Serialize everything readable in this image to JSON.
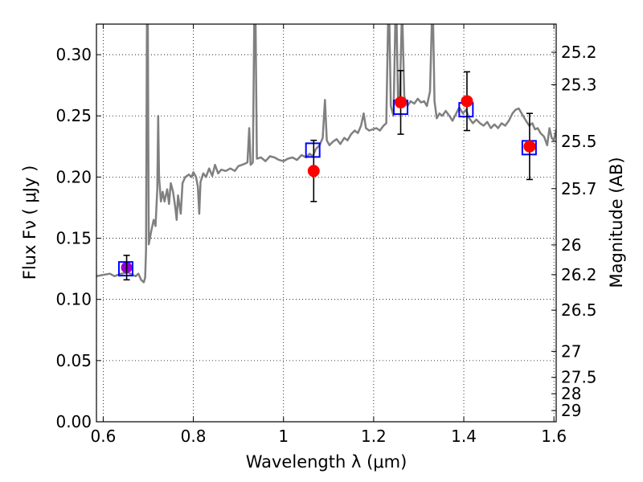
{
  "chart_data": {
    "type": "scatter",
    "xlabel": "Wavelength  λ (μm)",
    "ylabel": "Flux  Fν  ( μJy )",
    "y2label": "Magnitude (AB)",
    "xlim": [
      0.585,
      1.605
    ],
    "ylim": [
      0.0,
      0.325
    ],
    "grid": true,
    "x_ticks": [
      0.6,
      0.8,
      1.0,
      1.2,
      1.4,
      1.6
    ],
    "x_tick_labels": [
      "0.6",
      "0.8",
      "1",
      "1.2",
      "1.4",
      "1.6"
    ],
    "y_ticks": [
      0.0,
      0.05,
      0.1,
      0.15,
      0.2,
      0.25,
      0.3
    ],
    "y_tick_labels": [
      "0.00",
      "0.05",
      "0.10",
      "0.15",
      "0.20",
      "0.25",
      "0.30"
    ],
    "y2_ticks": [
      {
        "label": "25.2",
        "mag": 25.2
      },
      {
        "label": "25.3",
        "mag": 25.3
      },
      {
        "label": "25.5",
        "mag": 25.5
      },
      {
        "label": "25.7",
        "mag": 25.7
      },
      {
        "label": "26",
        "mag": 26.0
      },
      {
        "label": "26.2",
        "mag": 26.2
      },
      {
        "label": "26.5",
        "mag": 26.5
      },
      {
        "label": "27",
        "mag": 27.0
      },
      {
        "label": "27.5",
        "mag": 27.5
      },
      {
        "label": "28",
        "mag": 28.0
      },
      {
        "label": "29",
        "mag": 29.0
      }
    ],
    "series": [
      {
        "kind": "line",
        "color": "#808080",
        "points": [
          [
            0.585,
            0.119
          ],
          [
            0.6,
            0.12
          ],
          [
            0.615,
            0.121
          ],
          [
            0.625,
            0.119
          ],
          [
            0.64,
            0.121
          ],
          [
            0.655,
            0.122
          ],
          [
            0.665,
            0.12
          ],
          [
            0.672,
            0.119
          ],
          [
            0.678,
            0.121
          ],
          [
            0.684,
            0.116
          ],
          [
            0.69,
            0.114
          ],
          [
            0.693,
            0.118
          ],
          [
            0.695,
            0.14
          ],
          [
            0.697,
            0.325
          ],
          [
            0.699,
            0.325
          ],
          [
            0.701,
            0.145
          ],
          [
            0.706,
            0.155
          ],
          [
            0.712,
            0.165
          ],
          [
            0.716,
            0.16
          ],
          [
            0.72,
            0.19
          ],
          [
            0.722,
            0.25
          ],
          [
            0.724,
            0.2
          ],
          [
            0.728,
            0.18
          ],
          [
            0.732,
            0.188
          ],
          [
            0.736,
            0.18
          ],
          [
            0.742,
            0.19
          ],
          [
            0.746,
            0.178
          ],
          [
            0.75,
            0.195
          ],
          [
            0.755,
            0.188
          ],
          [
            0.76,
            0.175
          ],
          [
            0.763,
            0.165
          ],
          [
            0.766,
            0.185
          ],
          [
            0.772,
            0.17
          ],
          [
            0.776,
            0.195
          ],
          [
            0.782,
            0.2
          ],
          [
            0.79,
            0.202
          ],
          [
            0.796,
            0.2
          ],
          [
            0.8,
            0.204
          ],
          [
            0.806,
            0.2
          ],
          [
            0.81,
            0.192
          ],
          [
            0.813,
            0.17
          ],
          [
            0.816,
            0.196
          ],
          [
            0.822,
            0.203
          ],
          [
            0.828,
            0.2
          ],
          [
            0.835,
            0.207
          ],
          [
            0.842,
            0.201
          ],
          [
            0.848,
            0.21
          ],
          [
            0.855,
            0.203
          ],
          [
            0.862,
            0.206
          ],
          [
            0.872,
            0.205
          ],
          [
            0.882,
            0.207
          ],
          [
            0.892,
            0.205
          ],
          [
            0.9,
            0.209
          ],
          [
            0.908,
            0.21
          ],
          [
            0.915,
            0.211
          ],
          [
            0.92,
            0.212
          ],
          [
            0.924,
            0.24
          ],
          [
            0.927,
            0.21
          ],
          [
            0.932,
            0.212
          ],
          [
            0.935,
            0.325
          ],
          [
            0.938,
            0.325
          ],
          [
            0.941,
            0.215
          ],
          [
            0.95,
            0.216
          ],
          [
            0.96,
            0.213
          ],
          [
            0.97,
            0.217
          ],
          [
            0.98,
            0.216
          ],
          [
            0.99,
            0.214
          ],
          [
            1.0,
            0.213
          ],
          [
            1.01,
            0.215
          ],
          [
            1.02,
            0.216
          ],
          [
            1.03,
            0.214
          ],
          [
            1.04,
            0.218
          ],
          [
            1.05,
            0.216
          ],
          [
            1.058,
            0.219
          ],
          [
            1.065,
            0.217
          ],
          [
            1.072,
            0.223
          ],
          [
            1.08,
            0.226
          ],
          [
            1.087,
            0.232
          ],
          [
            1.092,
            0.263
          ],
          [
            1.096,
            0.23
          ],
          [
            1.102,
            0.226
          ],
          [
            1.11,
            0.229
          ],
          [
            1.118,
            0.231
          ],
          [
            1.126,
            0.227
          ],
          [
            1.135,
            0.232
          ],
          [
            1.142,
            0.23
          ],
          [
            1.15,
            0.235
          ],
          [
            1.158,
            0.238
          ],
          [
            1.165,
            0.236
          ],
          [
            1.172,
            0.242
          ],
          [
            1.178,
            0.252
          ],
          [
            1.183,
            0.24
          ],
          [
            1.19,
            0.238
          ],
          [
            1.198,
            0.239
          ],
          [
            1.206,
            0.24
          ],
          [
            1.214,
            0.238
          ],
          [
            1.222,
            0.242
          ],
          [
            1.228,
            0.244
          ],
          [
            1.232,
            0.325
          ],
          [
            1.235,
            0.325
          ],
          [
            1.238,
            0.258
          ],
          [
            1.244,
            0.25
          ],
          [
            1.248,
            0.325
          ],
          [
            1.251,
            0.325
          ],
          [
            1.254,
            0.262
          ],
          [
            1.258,
            0.266
          ],
          [
            1.262,
            0.325
          ],
          [
            1.264,
            0.325
          ],
          [
            1.268,
            0.266
          ],
          [
            1.275,
            0.258
          ],
          [
            1.282,
            0.262
          ],
          [
            1.29,
            0.26
          ],
          [
            1.298,
            0.264
          ],
          [
            1.305,
            0.261
          ],
          [
            1.312,
            0.262
          ],
          [
            1.318,
            0.258
          ],
          [
            1.325,
            0.27
          ],
          [
            1.329,
            0.325
          ],
          [
            1.332,
            0.325
          ],
          [
            1.335,
            0.262
          ],
          [
            1.34,
            0.248
          ],
          [
            1.346,
            0.252
          ],
          [
            1.352,
            0.25
          ],
          [
            1.36,
            0.254
          ],
          [
            1.368,
            0.25
          ],
          [
            1.375,
            0.246
          ],
          [
            1.382,
            0.251
          ],
          [
            1.39,
            0.257
          ],
          [
            1.398,
            0.252
          ],
          [
            1.405,
            0.255
          ],
          [
            1.412,
            0.248
          ],
          [
            1.42,
            0.244
          ],
          [
            1.428,
            0.247
          ],
          [
            1.436,
            0.244
          ],
          [
            1.444,
            0.242
          ],
          [
            1.452,
            0.245
          ],
          [
            1.46,
            0.24
          ],
          [
            1.468,
            0.243
          ],
          [
            1.476,
            0.24
          ],
          [
            1.484,
            0.244
          ],
          [
            1.492,
            0.242
          ],
          [
            1.5,
            0.246
          ],
          [
            1.508,
            0.252
          ],
          [
            1.515,
            0.255
          ],
          [
            1.522,
            0.256
          ],
          [
            1.53,
            0.251
          ],
          [
            1.538,
            0.246
          ],
          [
            1.545,
            0.242
          ],
          [
            1.552,
            0.244
          ],
          [
            1.558,
            0.239
          ],
          [
            1.564,
            0.24
          ],
          [
            1.57,
            0.236
          ],
          [
            1.578,
            0.233
          ],
          [
            1.585,
            0.226
          ],
          [
            1.59,
            0.24
          ],
          [
            1.595,
            0.232
          ],
          [
            1.6,
            0.23
          ],
          [
            1.605,
            0.239
          ]
        ]
      },
      {
        "kind": "markers",
        "marker": "open-square",
        "color": "#0000ff",
        "x": [
          0.65,
          1.065,
          1.26,
          1.405,
          1.545
        ],
        "y": [
          0.125,
          0.222,
          0.257,
          0.255,
          0.224
        ]
      },
      {
        "kind": "markers",
        "marker": "filled-circle",
        "color": "#ff0000",
        "x": [
          0.652,
          1.067,
          1.26,
          1.407,
          1.546
        ],
        "y": [
          0.126,
          0.205,
          0.261,
          0.262,
          0.225
        ],
        "yerr": [
          0.01,
          0.025,
          0.026,
          0.024,
          0.027
        ]
      }
    ],
    "overlap_marker_color": "#9400d3"
  }
}
